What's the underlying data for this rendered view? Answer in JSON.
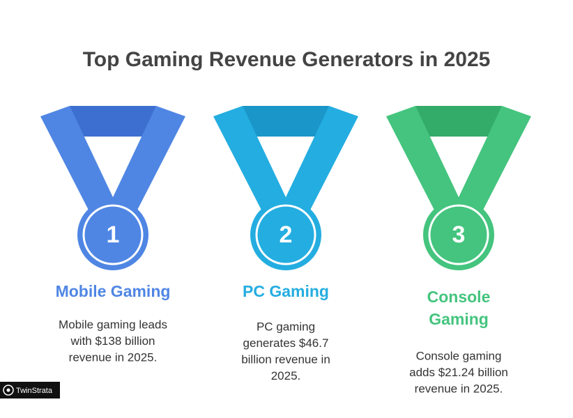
{
  "title": "Top Gaming Revenue Generators in 2025",
  "medals": [
    {
      "rank": "1",
      "name_lines": [
        "Mobile Gaming"
      ],
      "description_lines": [
        "Mobile gaming leads",
        "with $138 billion",
        "revenue in 2025."
      ],
      "color": "#4f86e4",
      "dark": "#3d6fd0"
    },
    {
      "rank": "2",
      "name_lines": [
        "PC Gaming"
      ],
      "description_lines": [
        "PC gaming",
        "generates $46.7",
        "billion revenue in",
        "2025."
      ],
      "color": "#24ade0",
      "dark": "#1a96c8"
    },
    {
      "rank": "3",
      "name_lines": [
        "Console",
        "Gaming"
      ],
      "description_lines": [
        "Console gaming",
        "adds $21.24 billion",
        "revenue in 2025."
      ],
      "color": "#44c47e",
      "dark": "#33ab69"
    }
  ],
  "watermark": "TwinStrata"
}
